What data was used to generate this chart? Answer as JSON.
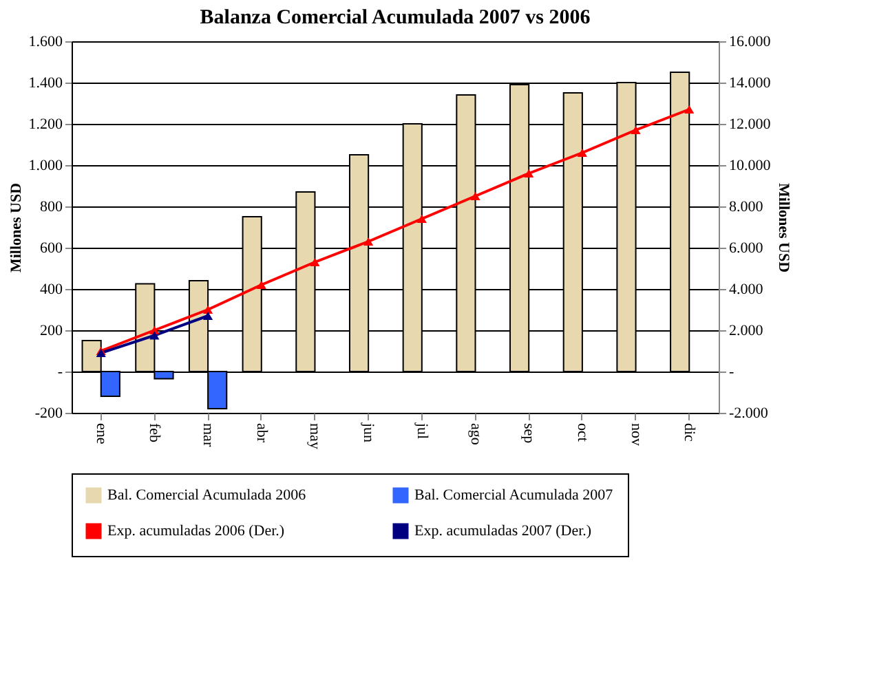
{
  "chart_data": {
    "type": "bar",
    "title": "Balanza Comercial Acumulada 2007 vs 2006",
    "categories": [
      "ene",
      "feb",
      "mar",
      "abr",
      "may",
      "jun",
      "jul",
      "ago",
      "sep",
      "oct",
      "nov",
      "dic"
    ],
    "series": [
      {
        "name": "Bal. Comercial Acumulada 2006",
        "color": "#e8d8b0",
        "values": [
          150,
          425,
          440,
          750,
          870,
          1050,
          1200,
          1340,
          1390,
          1350,
          1400,
          1450
        ]
      },
      {
        "name": "Bal. Comercial Acumulada 2007",
        "color": "#3366ff",
        "values": [
          -120,
          -35,
          -180,
          null,
          null,
          null,
          null,
          null,
          null,
          null,
          null,
          null
        ]
      },
      {
        "name": "Exp. acumuladas 2006 (Der.)",
        "type": "line",
        "axis": "y2",
        "color": "#ff0000",
        "values": [
          1000,
          2000,
          3000,
          4200,
          5300,
          6300,
          7400,
          8500,
          9600,
          10600,
          11700,
          12700
        ]
      },
      {
        "name": "Exp. acumuladas 2007 (Der.)",
        "type": "line",
        "axis": "y2",
        "color": "#000080",
        "values": [
          900,
          1750,
          2700,
          null,
          null,
          null,
          null,
          null,
          null,
          null,
          null,
          null
        ]
      }
    ],
    "ylabel": "Millones USD",
    "y2label": "Millones USD",
    "ylim": [
      -200,
      1600
    ],
    "yticks": [
      {
        "value": -200,
        "label": "-200"
      },
      {
        "value": 0,
        "label": "-"
      },
      200,
      400,
      600,
      800,
      {
        "value": 1000,
        "label": "1.000"
      },
      {
        "value": 1200,
        "label": "1.200"
      },
      {
        "value": 1400,
        "label": "1.400"
      },
      {
        "value": 1600,
        "label": "1.600"
      }
    ],
    "y2lim": [
      -2000,
      16000
    ],
    "y2ticks": [
      {
        "value": -2000,
        "label": "-2.000"
      },
      {
        "value": 0,
        "label": "-"
      },
      {
        "value": 2000,
        "label": "2.000"
      },
      {
        "value": 4000,
        "label": "4.000"
      },
      {
        "value": 6000,
        "label": "6.000"
      },
      {
        "value": 8000,
        "label": "8.000"
      },
      {
        "value": 10000,
        "label": "10.000"
      },
      {
        "value": 12000,
        "label": "12.000"
      },
      {
        "value": 14000,
        "label": "14.000"
      },
      {
        "value": 16000,
        "label": "16.000"
      }
    ],
    "grid": "y",
    "legend": "bottom",
    "marker": "triangle",
    "line_style": "solid"
  }
}
